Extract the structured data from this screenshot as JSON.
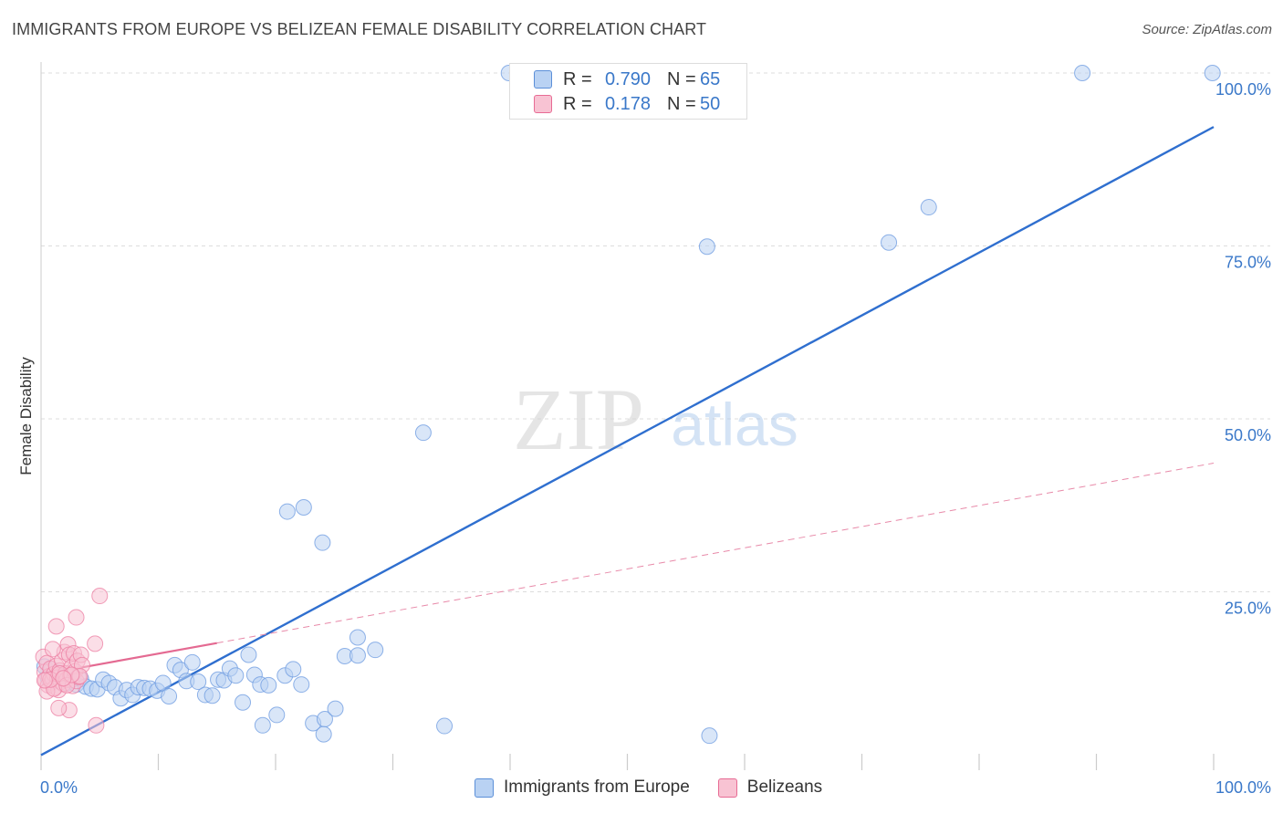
{
  "header": {
    "title": "IMMIGRANTS FROM EUROPE VS BELIZEAN FEMALE DISABILITY CORRELATION CHART",
    "source": "Source: ZipAtlas.com"
  },
  "watermark": {
    "zip": "ZIP",
    "atlas": "atlas"
  },
  "legend": {
    "r_label": "R =",
    "n_label": "N =",
    "rows": [
      {
        "name": "Immigrants from Europe",
        "r": "0.790",
        "n": "65",
        "color": "#5b8fd8",
        "fill": "#b9d2f3"
      },
      {
        "name": "Belizeans",
        "r": "0.178",
        "n": "50",
        "color": "#e76b94",
        "fill": "#f8c3d3"
      }
    ]
  },
  "chart_data": {
    "type": "scatter",
    "title": "IMMIGRANTS FROM EUROPE VS BELIZEAN FEMALE DISABILITY CORRELATION CHART",
    "xlabel": "",
    "ylabel": "Female Disability",
    "xlim": [
      0,
      100
    ],
    "ylim": [
      0,
      100
    ],
    "x_tick_labels": [
      "0.0%",
      "100.0%"
    ],
    "y_ticks": [
      25,
      50,
      75,
      100
    ],
    "y_tick_labels": [
      "25.0%",
      "50.0%",
      "75.0%",
      "100.0%"
    ],
    "grid": true,
    "series": [
      {
        "name": "Immigrants from Europe",
        "color": "#5b8fd8",
        "trend": {
          "x": [
            0,
            100
          ],
          "y": [
            1.4,
            92.2
          ]
        },
        "points": [
          {
            "x": 0.3,
            "y": 14.2
          },
          {
            "x": 0.6,
            "y": 12.5
          },
          {
            "x": 0.9,
            "y": 13.8
          },
          {
            "x": 1.2,
            "y": 12.1
          },
          {
            "x": 1.5,
            "y": 13.3
          },
          {
            "x": 1.9,
            "y": 12.8
          },
          {
            "x": 2.2,
            "y": 11.8
          },
          {
            "x": 2.6,
            "y": 12.2
          },
          {
            "x": 3.0,
            "y": 11.6
          },
          {
            "x": 3.4,
            "y": 12.4
          },
          {
            "x": 3.8,
            "y": 11.3
          },
          {
            "x": 4.3,
            "y": 11.0
          },
          {
            "x": 4.8,
            "y": 10.9
          },
          {
            "x": 5.3,
            "y": 12.3
          },
          {
            "x": 5.8,
            "y": 11.8
          },
          {
            "x": 6.3,
            "y": 11.2
          },
          {
            "x": 6.8,
            "y": 9.6
          },
          {
            "x": 7.3,
            "y": 10.8
          },
          {
            "x": 7.8,
            "y": 10.1
          },
          {
            "x": 8.3,
            "y": 11.2
          },
          {
            "x": 8.8,
            "y": 11.1
          },
          {
            "x": 9.3,
            "y": 11.0
          },
          {
            "x": 9.9,
            "y": 10.7
          },
          {
            "x": 10.4,
            "y": 11.8
          },
          {
            "x": 10.9,
            "y": 9.9
          },
          {
            "x": 11.4,
            "y": 14.4
          },
          {
            "x": 11.9,
            "y": 13.7
          },
          {
            "x": 12.4,
            "y": 12.1
          },
          {
            "x": 12.9,
            "y": 14.8
          },
          {
            "x": 13.4,
            "y": 12.0
          },
          {
            "x": 14.0,
            "y": 10.1
          },
          {
            "x": 14.6,
            "y": 10.0
          },
          {
            "x": 15.1,
            "y": 12.3
          },
          {
            "x": 15.6,
            "y": 12.2
          },
          {
            "x": 16.1,
            "y": 13.9
          },
          {
            "x": 16.6,
            "y": 12.9
          },
          {
            "x": 17.2,
            "y": 9.0
          },
          {
            "x": 17.7,
            "y": 15.9
          },
          {
            "x": 18.2,
            "y": 13.0
          },
          {
            "x": 18.7,
            "y": 11.6
          },
          {
            "x": 19.4,
            "y": 11.5
          },
          {
            "x": 20.1,
            "y": 7.2
          },
          {
            "x": 20.8,
            "y": 12.9
          },
          {
            "x": 21.5,
            "y": 13.8
          },
          {
            "x": 22.2,
            "y": 11.6
          },
          {
            "x": 23.2,
            "y": 6.0
          },
          {
            "x": 24.2,
            "y": 6.6
          },
          {
            "x": 25.1,
            "y": 8.1
          },
          {
            "x": 25.9,
            "y": 15.7
          },
          {
            "x": 27.0,
            "y": 15.8
          },
          {
            "x": 28.5,
            "y": 16.6
          },
          {
            "x": 18.9,
            "y": 5.7
          },
          {
            "x": 24.1,
            "y": 4.4
          },
          {
            "x": 34.4,
            "y": 5.6
          },
          {
            "x": 57.0,
            "y": 4.2
          },
          {
            "x": 21.0,
            "y": 36.6
          },
          {
            "x": 22.4,
            "y": 37.2
          },
          {
            "x": 24.0,
            "y": 32.1
          },
          {
            "x": 27.0,
            "y": 18.4
          },
          {
            "x": 32.6,
            "y": 48.0
          },
          {
            "x": 56.8,
            "y": 74.9
          },
          {
            "x": 72.3,
            "y": 75.5
          },
          {
            "x": 75.7,
            "y": 80.6
          },
          {
            "x": 88.8,
            "y": 100.0
          },
          {
            "x": 99.9,
            "y": 100.0
          },
          {
            "x": 39.9,
            "y": 100.0
          }
        ]
      },
      {
        "name": "Belizeans",
        "color": "#e76b94",
        "trend": {
          "x": [
            0,
            100
          ],
          "y": [
            13.0,
            43.6
          ],
          "solid_until": 15
        },
        "points": [
          {
            "x": 0.2,
            "y": 15.6
          },
          {
            "x": 0.3,
            "y": 13.4
          },
          {
            "x": 0.4,
            "y": 12.2
          },
          {
            "x": 0.5,
            "y": 14.7
          },
          {
            "x": 0.6,
            "y": 11.5
          },
          {
            "x": 0.7,
            "y": 12.8
          },
          {
            "x": 0.8,
            "y": 13.9
          },
          {
            "x": 0.9,
            "y": 11.9
          },
          {
            "x": 1.0,
            "y": 12.4
          },
          {
            "x": 1.1,
            "y": 13.1
          },
          {
            "x": 1.2,
            "y": 11.2
          },
          {
            "x": 1.3,
            "y": 14.3
          },
          {
            "x": 1.4,
            "y": 12.6
          },
          {
            "x": 1.5,
            "y": 10.8
          },
          {
            "x": 1.6,
            "y": 13.6
          },
          {
            "x": 1.7,
            "y": 12.0
          },
          {
            "x": 1.8,
            "y": 15.1
          },
          {
            "x": 1.9,
            "y": 11.7
          },
          {
            "x": 2.0,
            "y": 16.3
          },
          {
            "x": 2.1,
            "y": 13.2
          },
          {
            "x": 2.2,
            "y": 12.3
          },
          {
            "x": 2.3,
            "y": 17.4
          },
          {
            "x": 2.4,
            "y": 15.9
          },
          {
            "x": 2.5,
            "y": 12.9
          },
          {
            "x": 2.6,
            "y": 14.1
          },
          {
            "x": 2.7,
            "y": 11.4
          },
          {
            "x": 2.8,
            "y": 16.1
          },
          {
            "x": 2.9,
            "y": 13.5
          },
          {
            "x": 3.0,
            "y": 12.1
          },
          {
            "x": 3.1,
            "y": 15.0
          },
          {
            "x": 3.2,
            "y": 12.7
          },
          {
            "x": 0.5,
            "y": 10.6
          },
          {
            "x": 1.0,
            "y": 16.7
          },
          {
            "x": 1.3,
            "y": 20.0
          },
          {
            "x": 3.0,
            "y": 21.3
          },
          {
            "x": 5.0,
            "y": 24.4
          },
          {
            "x": 4.6,
            "y": 17.5
          },
          {
            "x": 3.4,
            "y": 15.9
          },
          {
            "x": 3.5,
            "y": 14.4
          },
          {
            "x": 1.1,
            "y": 11.0
          },
          {
            "x": 2.4,
            "y": 7.9
          },
          {
            "x": 4.7,
            "y": 5.7
          },
          {
            "x": 1.5,
            "y": 8.2
          },
          {
            "x": 0.8,
            "y": 12.3
          },
          {
            "x": 3.3,
            "y": 12.8
          },
          {
            "x": 1.6,
            "y": 13.2
          },
          {
            "x": 2.2,
            "y": 11.5
          },
          {
            "x": 2.6,
            "y": 13.0
          },
          {
            "x": 1.9,
            "y": 12.5
          },
          {
            "x": 0.3,
            "y": 12.2
          }
        ]
      }
    ]
  }
}
